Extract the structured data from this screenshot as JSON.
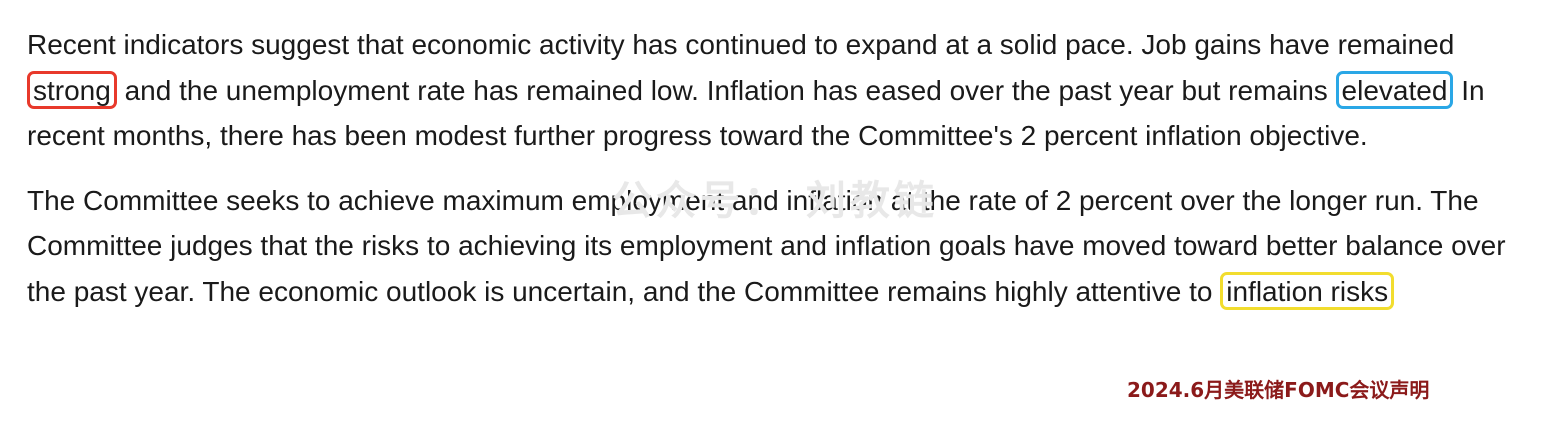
{
  "paragraph1": {
    "t1": "Recent indicators suggest that economic activity has continued to expand at a solid pace. Job gains have remained ",
    "h1": "strong",
    "t2": " and the unemployment rate has remained low. Inflation has eased over the past year but remains ",
    "h2": "elevated",
    "t3": " In recent months, there has been modest further progress toward the Committee's 2 percent inflation objective."
  },
  "paragraph2": {
    "t1": "The Committee seeks to achieve maximum employment and inflation at the rate of 2 percent over the longer run. The Committee judges that the risks to achieving its employment and inflation goals have moved toward better balance over the past year. The economic outlook is uncertain, and the Committee remains highly attentive to ",
    "h1": "inflation risks"
  },
  "watermark": "公众号： 刘教链",
  "caption": "2024.6月美联储FOMC会议声明",
  "colors": {
    "highlight_red": "#e8392b",
    "highlight_blue": "#2aa7e6",
    "highlight_yellow": "#f2dd2e",
    "caption": "#8b1a1a"
  }
}
